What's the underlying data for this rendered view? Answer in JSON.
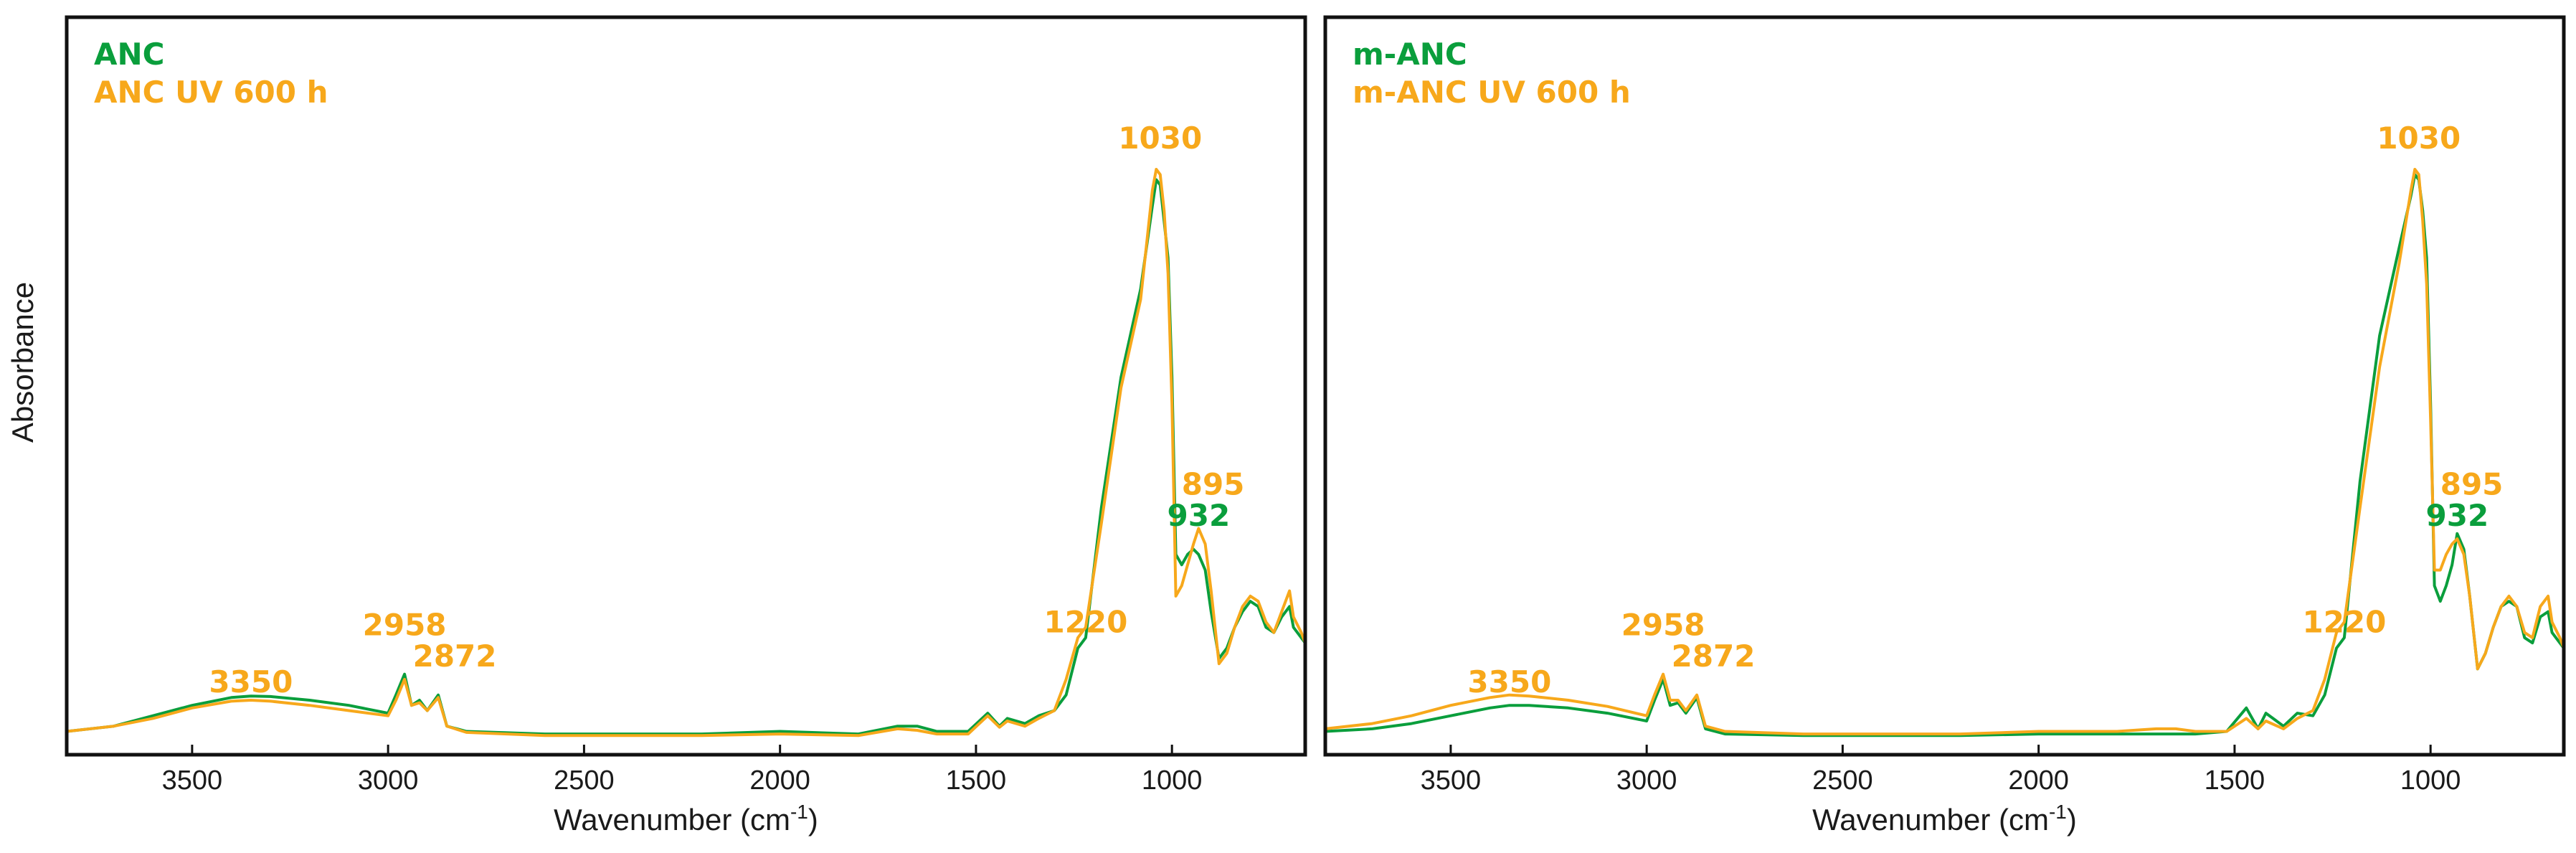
{
  "colors": {
    "green": "#0a9e3c",
    "orange": "#f7a81b",
    "axis": "#111111"
  },
  "y_label": "Absorbance",
  "chart_data": [
    {
      "type": "line",
      "xlabel": "Wavenumber (cm",
      "xlabel_sup": "-1",
      "xlabel_end": ")",
      "ylabel": "Absorbance",
      "xlim": [
        3820,
        660
      ],
      "ylim": [
        0,
        1.1
      ],
      "xticks": [
        3500,
        3000,
        2500,
        2000,
        1500,
        1000
      ],
      "x_reversed": true,
      "legend_position": "top-left",
      "series": [
        {
          "name": "ANC",
          "color_key": "green",
          "x": [
            3820,
            3700,
            3600,
            3500,
            3400,
            3350,
            3300,
            3200,
            3100,
            3000,
            2980,
            2958,
            2940,
            2920,
            2900,
            2872,
            2850,
            2800,
            2600,
            2400,
            2200,
            2000,
            1800,
            1700,
            1650,
            1600,
            1520,
            1470,
            1440,
            1420,
            1375,
            1340,
            1300,
            1270,
            1240,
            1220,
            1180,
            1130,
            1080,
            1050,
            1040,
            1030,
            1020,
            1010,
            1000,
            990,
            975,
            960,
            945,
            932,
            915,
            900,
            880,
            860,
            840,
            820,
            800,
            780,
            760,
            740,
            720,
            700,
            690,
            670,
            660
          ],
          "y": [
            0.02,
            0.03,
            0.05,
            0.07,
            0.085,
            0.088,
            0.087,
            0.08,
            0.07,
            0.055,
            0.09,
            0.13,
            0.07,
            0.08,
            0.06,
            0.09,
            0.03,
            0.02,
            0.015,
            0.015,
            0.015,
            0.02,
            0.015,
            0.03,
            0.03,
            0.02,
            0.02,
            0.055,
            0.03,
            0.045,
            0.035,
            0.05,
            0.06,
            0.09,
            0.18,
            0.2,
            0.45,
            0.7,
            0.87,
            1.03,
            1.08,
            1.07,
            1.0,
            0.93,
            0.7,
            0.36,
            0.34,
            0.36,
            0.37,
            0.36,
            0.33,
            0.25,
            0.16,
            0.18,
            0.22,
            0.25,
            0.27,
            0.26,
            0.22,
            0.21,
            0.24,
            0.26,
            0.22,
            0.2,
            0.19
          ]
        },
        {
          "name": "ANC UV 600 h",
          "color_key": "orange",
          "x": [
            3820,
            3700,
            3600,
            3500,
            3400,
            3350,
            3300,
            3200,
            3100,
            3000,
            2980,
            2958,
            2940,
            2920,
            2900,
            2872,
            2850,
            2800,
            2600,
            2400,
            2200,
            2000,
            1800,
            1700,
            1650,
            1600,
            1520,
            1470,
            1440,
            1420,
            1375,
            1340,
            1300,
            1270,
            1240,
            1220,
            1180,
            1130,
            1080,
            1050,
            1040,
            1030,
            1020,
            1010,
            1000,
            990,
            975,
            960,
            945,
            932,
            915,
            900,
            880,
            860,
            840,
            820,
            800,
            780,
            760,
            740,
            720,
            700,
            690,
            670,
            660
          ],
          "y": [
            0.02,
            0.03,
            0.045,
            0.065,
            0.078,
            0.08,
            0.078,
            0.07,
            0.06,
            0.05,
            0.08,
            0.12,
            0.07,
            0.075,
            0.06,
            0.085,
            0.03,
            0.018,
            0.012,
            0.012,
            0.012,
            0.015,
            0.012,
            0.025,
            0.022,
            0.015,
            0.015,
            0.05,
            0.028,
            0.04,
            0.03,
            0.045,
            0.06,
            0.12,
            0.2,
            0.22,
            0.42,
            0.68,
            0.85,
            1.06,
            1.1,
            1.09,
            1.02,
            0.9,
            0.65,
            0.28,
            0.3,
            0.34,
            0.38,
            0.41,
            0.38,
            0.29,
            0.15,
            0.17,
            0.22,
            0.26,
            0.28,
            0.27,
            0.23,
            0.21,
            0.25,
            0.29,
            0.24,
            0.21,
            0.19
          ]
        }
      ],
      "annotations": [
        {
          "text": "3350",
          "color_key": "orange",
          "x": 3350,
          "y": 0.095
        },
        {
          "text": "2958",
          "color_key": "orange",
          "x": 2958,
          "y": 0.205
        },
        {
          "text": "2872",
          "color_key": "orange",
          "x": 2830,
          "y": 0.145
        },
        {
          "text": "1220",
          "color_key": "orange",
          "x": 1220,
          "y": 0.21
        },
        {
          "text": "1030",
          "color_key": "orange",
          "x": 1030,
          "y": 1.14
        },
        {
          "text": "895",
          "color_key": "orange",
          "x": 895,
          "y": 0.475
        },
        {
          "text": "932",
          "color_key": "green",
          "x": 932,
          "y": 0.415
        }
      ]
    },
    {
      "type": "line",
      "xlabel": "Wavenumber (cm",
      "xlabel_sup": "-1",
      "xlabel_end": ")",
      "xlim": [
        3820,
        660
      ],
      "ylim": [
        0,
        1.1
      ],
      "xticks": [
        3500,
        3000,
        2500,
        2000,
        1500,
        1000
      ],
      "x_reversed": true,
      "legend_position": "top-left",
      "series": [
        {
          "name": "m-ANC",
          "color_key": "green",
          "x": [
            3820,
            3700,
            3600,
            3500,
            3400,
            3350,
            3300,
            3200,
            3100,
            3000,
            2980,
            2958,
            2940,
            2920,
            2900,
            2872,
            2850,
            2800,
            2600,
            2400,
            2200,
            2000,
            1800,
            1700,
            1650,
            1600,
            1520,
            1470,
            1440,
            1420,
            1375,
            1340,
            1300,
            1270,
            1240,
            1220,
            1180,
            1130,
            1080,
            1050,
            1040,
            1030,
            1020,
            1010,
            1000,
            990,
            975,
            960,
            945,
            932,
            915,
            900,
            880,
            860,
            840,
            820,
            800,
            780,
            760,
            740,
            720,
            700,
            690,
            670,
            660
          ],
          "y": [
            0.02,
            0.025,
            0.035,
            0.05,
            0.065,
            0.07,
            0.07,
            0.065,
            0.055,
            0.04,
            0.08,
            0.12,
            0.07,
            0.075,
            0.055,
            0.085,
            0.025,
            0.015,
            0.012,
            0.012,
            0.012,
            0.015,
            0.015,
            0.015,
            0.015,
            0.015,
            0.02,
            0.065,
            0.025,
            0.055,
            0.03,
            0.055,
            0.05,
            0.09,
            0.18,
            0.2,
            0.5,
            0.78,
            0.95,
            1.05,
            1.09,
            1.08,
            1.02,
            0.93,
            0.65,
            0.3,
            0.27,
            0.3,
            0.34,
            0.4,
            0.37,
            0.28,
            0.14,
            0.17,
            0.22,
            0.26,
            0.27,
            0.26,
            0.2,
            0.19,
            0.24,
            0.25,
            0.21,
            0.19,
            0.18
          ]
        },
        {
          "name": "m-ANC UV 600 h",
          "color_key": "orange",
          "x": [
            3820,
            3700,
            3600,
            3500,
            3400,
            3350,
            3300,
            3200,
            3100,
            3000,
            2980,
            2958,
            2940,
            2920,
            2900,
            2872,
            2850,
            2800,
            2600,
            2400,
            2200,
            2000,
            1800,
            1700,
            1650,
            1600,
            1520,
            1470,
            1440,
            1420,
            1375,
            1340,
            1300,
            1270,
            1240,
            1220,
            1180,
            1130,
            1080,
            1050,
            1040,
            1030,
            1020,
            1010,
            1000,
            990,
            975,
            960,
            945,
            932,
            915,
            900,
            880,
            860,
            840,
            820,
            800,
            780,
            760,
            740,
            720,
            700,
            690,
            670,
            660
          ],
          "y": [
            0.025,
            0.035,
            0.05,
            0.07,
            0.085,
            0.09,
            0.088,
            0.08,
            0.068,
            0.05,
            0.09,
            0.13,
            0.08,
            0.08,
            0.06,
            0.09,
            0.03,
            0.02,
            0.015,
            0.015,
            0.015,
            0.02,
            0.02,
            0.025,
            0.025,
            0.02,
            0.02,
            0.045,
            0.025,
            0.04,
            0.025,
            0.045,
            0.06,
            0.12,
            0.21,
            0.23,
            0.45,
            0.72,
            0.92,
            1.06,
            1.1,
            1.09,
            1.0,
            0.88,
            0.62,
            0.33,
            0.33,
            0.36,
            0.38,
            0.39,
            0.36,
            0.28,
            0.14,
            0.17,
            0.22,
            0.26,
            0.28,
            0.26,
            0.21,
            0.2,
            0.26,
            0.28,
            0.23,
            0.2,
            0.18
          ]
        }
      ],
      "annotations": [
        {
          "text": "3350",
          "color_key": "orange",
          "x": 3350,
          "y": 0.095
        },
        {
          "text": "2958",
          "color_key": "orange",
          "x": 2958,
          "y": 0.205
        },
        {
          "text": "2872",
          "color_key": "orange",
          "x": 2830,
          "y": 0.145
        },
        {
          "text": "1220",
          "color_key": "orange",
          "x": 1220,
          "y": 0.21
        },
        {
          "text": "1030",
          "color_key": "orange",
          "x": 1030,
          "y": 1.14
        },
        {
          "text": "895",
          "color_key": "orange",
          "x": 895,
          "y": 0.475
        },
        {
          "text": "932",
          "color_key": "green",
          "x": 932,
          "y": 0.415
        }
      ]
    }
  ]
}
